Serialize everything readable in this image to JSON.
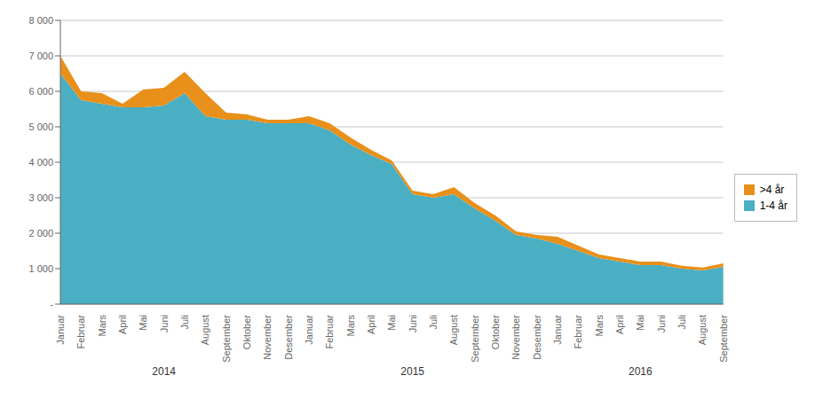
{
  "chart_data": {
    "type": "area",
    "stacked": true,
    "grid": true,
    "legend": "right",
    "categories": [
      "Januar",
      "Februar",
      "Mars",
      "April",
      "Mai",
      "Juni",
      "Juli",
      "August",
      "September",
      "Oktober",
      "November",
      "Desember",
      "Januar",
      "Februar",
      "Mars",
      "April",
      "Mai",
      "Juni",
      "Juli",
      "August",
      "September",
      "Oktober",
      "November",
      "Desember",
      "Januar",
      "Februar",
      "Mars",
      "April",
      "Mai",
      "Juni",
      "Juli",
      "August",
      "September"
    ],
    "series": [
      {
        "name": "1-4 år",
        "color": "#4bafc4",
        "values": [
          6500,
          5750,
          5650,
          5550,
          5550,
          5600,
          5950,
          5300,
          5200,
          5200,
          5100,
          5100,
          5100,
          4900,
          4500,
          4200,
          3950,
          3100,
          3000,
          3100,
          2700,
          2350,
          1950,
          1850,
          1700,
          1500,
          1300,
          1200,
          1100,
          1100,
          1000,
          950,
          1050
        ]
      },
      {
        "name": ">4 år",
        "color": "#e8901a",
        "values": [
          500,
          250,
          300,
          100,
          500,
          500,
          600,
          650,
          200,
          150,
          100,
          100,
          200,
          200,
          200,
          150,
          100,
          100,
          100,
          200,
          150,
          150,
          100,
          100,
          200,
          150,
          100,
          100,
          100,
          100,
          80,
          80,
          100
        ]
      }
    ],
    "ylim": [
      0,
      8000
    ],
    "yticks": [
      {
        "value": 0,
        "label": "-"
      },
      {
        "value": 1000,
        "label": "1 000"
      },
      {
        "value": 2000,
        "label": "2 000"
      },
      {
        "value": 3000,
        "label": "3 000"
      },
      {
        "value": 4000,
        "label": "4 000"
      },
      {
        "value": 5000,
        "label": "5 000"
      },
      {
        "value": 6000,
        "label": "6 000"
      },
      {
        "value": 7000,
        "label": "7 000"
      },
      {
        "value": 8000,
        "label": "8 000"
      }
    ],
    "annotations": [
      {
        "text": "2014",
        "from": 0,
        "to": 11
      },
      {
        "text": "2015",
        "from": 12,
        "to": 23
      },
      {
        "text": "2016",
        "from": 24,
        "to": 32
      }
    ]
  }
}
